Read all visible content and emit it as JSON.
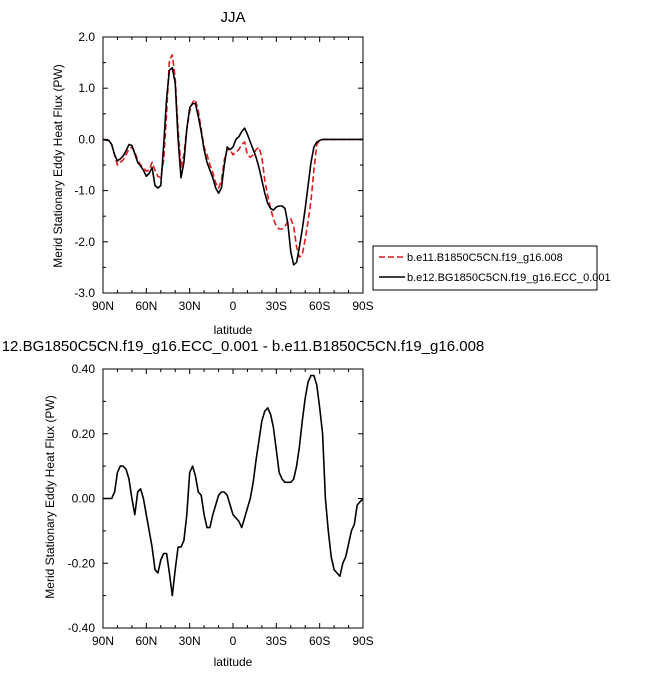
{
  "chart_data": [
    {
      "type": "line",
      "title": "JJA",
      "xlabel": "latitude",
      "ylabel": "Merid Stationary Eddy Heat Flux (PW)",
      "xlim": [
        90,
        -90
      ],
      "ylim": [
        -3.0,
        2.0
      ],
      "xtick_values": [
        90,
        60,
        30,
        0,
        -30,
        -60,
        -90
      ],
      "xtick_labels": [
        "90N",
        "60N",
        "30N",
        "0",
        "30S",
        "60S",
        "90S"
      ],
      "ytick_values": [
        2.0,
        1.0,
        0.0,
        -1.0,
        -2.0,
        -3.0
      ],
      "ytick_labels": [
        "2.0",
        "1.0",
        "0.0",
        "-1.0",
        "-2.0",
        "-3.0"
      ],
      "legend_position": "right",
      "series": [
        {
          "name": "b.e11.B1850C5CN.f19_g16.008",
          "color": "#e31a1c",
          "dash": true,
          "x": [
            90,
            86,
            84,
            82,
            80,
            78,
            76,
            74,
            72,
            70,
            68,
            66,
            64,
            62,
            60,
            58,
            56,
            54,
            52,
            50,
            48,
            46,
            44,
            42,
            40,
            38,
            36,
            34,
            32,
            30,
            28,
            26,
            24,
            22,
            20,
            18,
            16,
            14,
            12,
            10,
            8,
            6,
            4,
            2,
            0,
            -2,
            -4,
            -6,
            -8,
            -10,
            -12,
            -14,
            -16,
            -18,
            -20,
            -22,
            -24,
            -26,
            -28,
            -30,
            -32,
            -34,
            -36,
            -38,
            -40,
            -42,
            -44,
            -46,
            -48,
            -50,
            -52,
            -54,
            -56,
            -58,
            -60,
            -62,
            -64,
            -66,
            -68,
            -70,
            -72,
            -74,
            -76,
            -78,
            -80,
            -82,
            -84,
            -86,
            -88,
            -90
          ],
          "y": [
            0.0,
            -0.02,
            -0.1,
            -0.3,
            -0.5,
            -0.45,
            -0.4,
            -0.3,
            -0.18,
            -0.15,
            -0.25,
            -0.4,
            -0.5,
            -0.55,
            -0.62,
            -0.6,
            -0.45,
            -0.6,
            -0.72,
            -0.75,
            -0.4,
            0.5,
            1.55,
            1.65,
            1.2,
            0.2,
            -0.55,
            -0.3,
            0.2,
            0.55,
            0.72,
            0.78,
            0.55,
            0.2,
            -0.15,
            -0.3,
            -0.5,
            -0.65,
            -0.85,
            -0.95,
            -0.8,
            -0.4,
            -0.2,
            -0.2,
            -0.3,
            -0.25,
            -0.2,
            -0.1,
            -0.05,
            -0.3,
            -0.35,
            -0.3,
            -0.2,
            -0.15,
            -0.35,
            -0.8,
            -1.1,
            -1.35,
            -1.55,
            -1.7,
            -1.75,
            -1.75,
            -1.7,
            -1.6,
            -1.55,
            -1.7,
            -2.1,
            -2.3,
            -2.25,
            -1.95,
            -1.6,
            -1.2,
            -0.6,
            -0.1,
            -0.02,
            0.0,
            0.0,
            0.0,
            0.0,
            0.0,
            0.0,
            0.0,
            0.0,
            0.0,
            0.0,
            0.0,
            0.0,
            0.0,
            0.0,
            0.0
          ]
        },
        {
          "name": "b.e12.BG1850C5CN.f19_g16.ECC_0.001",
          "color": "#000000",
          "dash": false,
          "x": [
            90,
            86,
            84,
            82,
            80,
            78,
            76,
            74,
            72,
            70,
            68,
            66,
            64,
            62,
            60,
            58,
            56,
            54,
            52,
            50,
            48,
            46,
            44,
            42,
            40,
            38,
            36,
            34,
            32,
            30,
            28,
            26,
            24,
            22,
            20,
            18,
            16,
            14,
            12,
            10,
            8,
            6,
            4,
            2,
            0,
            -2,
            -4,
            -6,
            -8,
            -10,
            -12,
            -14,
            -16,
            -18,
            -20,
            -22,
            -24,
            -26,
            -28,
            -30,
            -32,
            -34,
            -36,
            -38,
            -40,
            -42,
            -44,
            -46,
            -48,
            -50,
            -52,
            -54,
            -56,
            -58,
            -60,
            -62,
            -64,
            -66,
            -68,
            -70,
            -72,
            -74,
            -76,
            -78,
            -80,
            -82,
            -84,
            -86,
            -88,
            -90
          ],
          "y": [
            0.0,
            -0.02,
            -0.1,
            -0.3,
            -0.42,
            -0.38,
            -0.32,
            -0.22,
            -0.1,
            -0.12,
            -0.28,
            -0.45,
            -0.52,
            -0.6,
            -0.72,
            -0.66,
            -0.55,
            -0.9,
            -0.95,
            -0.9,
            -0.1,
            0.8,
            1.35,
            1.4,
            1.1,
            0.0,
            -0.75,
            -0.45,
            0.2,
            0.62,
            0.7,
            0.7,
            0.45,
            0.15,
            -0.2,
            -0.45,
            -0.6,
            -0.75,
            -0.95,
            -1.05,
            -0.95,
            -0.5,
            -0.15,
            -0.2,
            -0.15,
            0.0,
            0.05,
            0.15,
            0.22,
            0.1,
            -0.05,
            -0.2,
            -0.35,
            -0.55,
            -0.8,
            -1.05,
            -1.25,
            -1.35,
            -1.38,
            -1.32,
            -1.3,
            -1.3,
            -1.35,
            -1.65,
            -2.2,
            -2.45,
            -2.4,
            -2.1,
            -1.75,
            -1.35,
            -0.9,
            -0.45,
            -0.15,
            -0.05,
            -0.02,
            0.0,
            0.0,
            0.0,
            0.0,
            0.0,
            0.0,
            0.0,
            0.0,
            0.0,
            0.0,
            0.0,
            0.0,
            0.0,
            0.0,
            0.0
          ]
        }
      ]
    },
    {
      "type": "line",
      "title": "12.BG1850C5CN.f19_g16.ECC_0.001 - b.e11.B1850C5CN.f19_g16.008",
      "xlabel": "latitude",
      "ylabel": "Merid Stationary Eddy Heat Flux (PW)",
      "xlim": [
        90,
        -90
      ],
      "ylim": [
        -0.4,
        0.4
      ],
      "xtick_values": [
        90,
        60,
        30,
        0,
        -30,
        -60,
        -90
      ],
      "xtick_labels": [
        "90N",
        "60N",
        "30N",
        "0",
        "30S",
        "60S",
        "90S"
      ],
      "ytick_values": [
        0.4,
        0.2,
        0.0,
        -0.2,
        -0.4
      ],
      "ytick_labels": [
        "0.40",
        "0.20",
        "0.00",
        "-0.20",
        "-0.40"
      ],
      "series": [
        {
          "color": "#000000",
          "dash": false,
          "x": [
            90,
            86,
            84,
            82,
            80,
            78,
            76,
            74,
            72,
            70,
            68,
            66,
            64,
            62,
            60,
            58,
            56,
            54,
            52,
            50,
            48,
            46,
            44,
            42,
            40,
            38,
            36,
            34,
            32,
            30,
            28,
            26,
            24,
            22,
            20,
            18,
            16,
            14,
            12,
            10,
            8,
            6,
            4,
            2,
            0,
            -2,
            -4,
            -6,
            -8,
            -10,
            -12,
            -14,
            -16,
            -18,
            -20,
            -22,
            -24,
            -26,
            -28,
            -30,
            -32,
            -34,
            -36,
            -38,
            -40,
            -42,
            -44,
            -46,
            -48,
            -50,
            -52,
            -54,
            -56,
            -58,
            -60,
            -62,
            -64,
            -66,
            -68,
            -70,
            -72,
            -74,
            -76,
            -78,
            -80,
            -82,
            -84,
            -86,
            -88,
            -90
          ],
          "y": [
            0.0,
            0.0,
            0.0,
            0.02,
            0.08,
            0.1,
            0.1,
            0.09,
            0.06,
            0.0,
            -0.05,
            0.02,
            0.03,
            0.0,
            -0.05,
            -0.1,
            -0.15,
            -0.22,
            -0.23,
            -0.19,
            -0.17,
            -0.17,
            -0.23,
            -0.3,
            -0.22,
            -0.15,
            -0.15,
            -0.13,
            -0.05,
            0.08,
            0.1,
            0.07,
            0.02,
            0.01,
            -0.05,
            -0.09,
            -0.09,
            -0.05,
            -0.02,
            0.01,
            0.02,
            0.02,
            0.01,
            -0.02,
            -0.05,
            -0.06,
            -0.07,
            -0.09,
            -0.06,
            -0.03,
            0.0,
            0.05,
            0.12,
            0.18,
            0.24,
            0.27,
            0.28,
            0.26,
            0.22,
            0.15,
            0.08,
            0.06,
            0.05,
            0.05,
            0.05,
            0.06,
            0.1,
            0.16,
            0.24,
            0.31,
            0.36,
            0.38,
            0.38,
            0.35,
            0.28,
            0.2,
            0.0,
            -0.1,
            -0.18,
            -0.22,
            -0.23,
            -0.24,
            -0.2,
            -0.18,
            -0.14,
            -0.1,
            -0.08,
            -0.02,
            -0.01,
            0.0
          ]
        }
      ]
    }
  ]
}
